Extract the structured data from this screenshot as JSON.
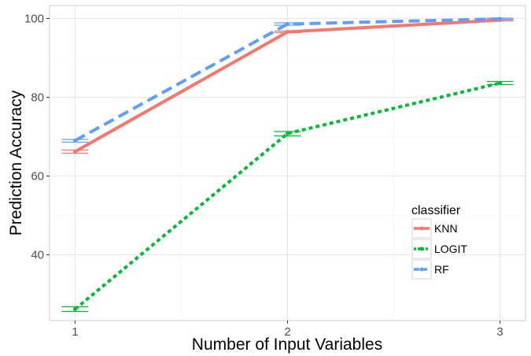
{
  "chart_data": {
    "type": "line",
    "xlabel": "Number of Input Variables",
    "ylabel": "Prediction Accuracy",
    "x": [
      1,
      2,
      3
    ],
    "xlim": [
      0.88,
      3.12
    ],
    "ylim": [
      23.3,
      103.3
    ],
    "xticks": [
      "1",
      "2",
      "3"
    ],
    "yticks": [
      "40",
      "60",
      "80",
      "100"
    ],
    "grid": true,
    "legend_position": "right",
    "legend_title": "classifier",
    "series": [
      {
        "name": "KNN",
        "values": [
          66.2,
          96.6,
          99.6
        ],
        "err_low": [
          65.8,
          96.4,
          99.4
        ],
        "err_high": [
          66.6,
          96.8,
          99.8
        ],
        "color": "#F8766D",
        "dash": "solid"
      },
      {
        "name": "LOGIT",
        "values": [
          26.2,
          70.8,
          83.6
        ],
        "err_low": [
          25.6,
          70.2,
          83.2
        ],
        "err_high": [
          26.8,
          71.3,
          84.0
        ],
        "color": "#00BA38",
        "dash": "dotted"
      },
      {
        "name": "RF",
        "values": [
          69.0,
          98.6,
          99.9
        ],
        "err_low": [
          68.6,
          98.3,
          99.7
        ],
        "err_high": [
          69.3,
          98.9,
          100.1
        ],
        "color": "#619CFF",
        "dash": "dashed"
      }
    ]
  }
}
